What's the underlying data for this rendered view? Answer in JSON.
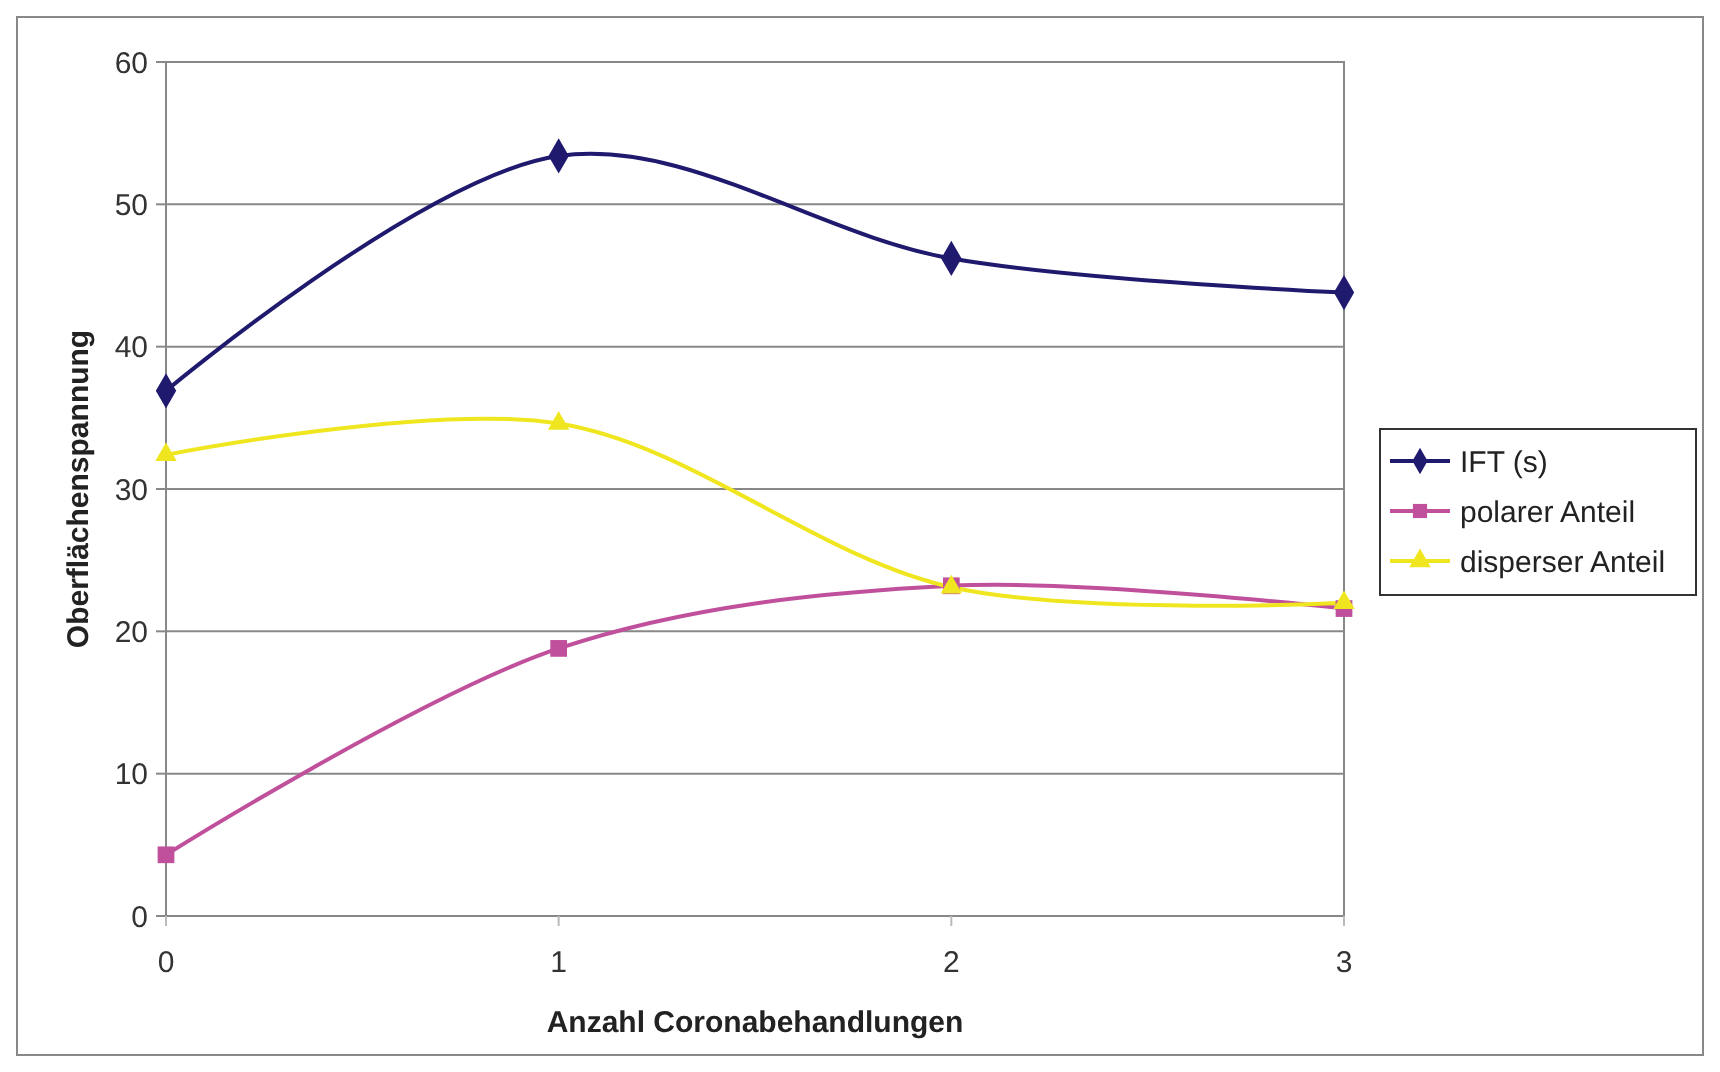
{
  "chart_data": {
    "type": "line",
    "xlabel": "Anzahl Coronabehandlungen",
    "ylabel": "Oberflächenspannung",
    "x": [
      0,
      1,
      2,
      3
    ],
    "xlim": [
      0,
      3
    ],
    "xticks": [
      0,
      1,
      2,
      3
    ],
    "ylim": [
      0,
      60
    ],
    "yticks": [
      0,
      10,
      20,
      30,
      40,
      50,
      60
    ],
    "grid": "y",
    "legend": "right",
    "series": [
      {
        "name": "IFT (s)",
        "color": "#1f1a6e",
        "marker": "diamond",
        "values": [
          36.9,
          53.4,
          46.2,
          43.8
        ]
      },
      {
        "name": "polarer Anteil",
        "color": "#c0509c",
        "marker": "square",
        "values": [
          4.3,
          18.8,
          23.2,
          21.6
        ]
      },
      {
        "name": "disperser Anteil",
        "color": "#f0e620",
        "marker": "triangle",
        "values": [
          32.4,
          34.6,
          23.1,
          22.0
        ]
      }
    ]
  }
}
